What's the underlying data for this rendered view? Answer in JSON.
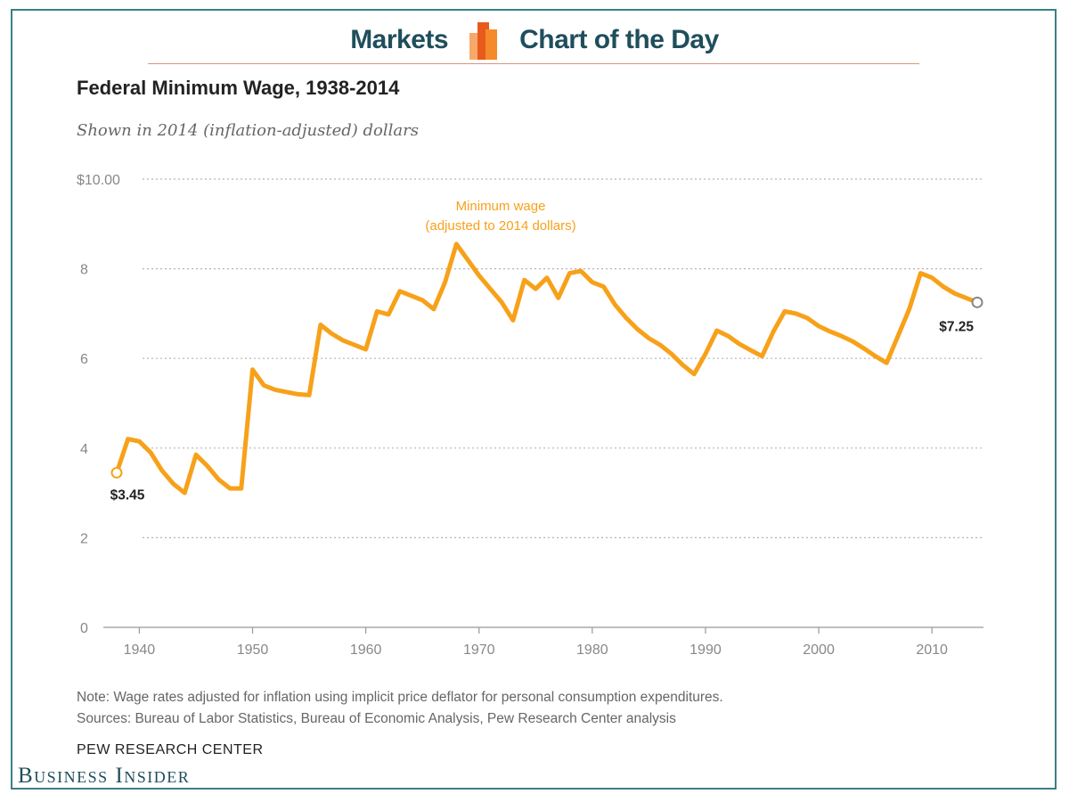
{
  "banner": {
    "left_label": "Markets",
    "right_label": "Chart of the Day"
  },
  "header": {
    "title": "Federal Minimum Wage, 1938-2014",
    "subtitle": "Shown in 2014 (inflation-adjusted) dollars"
  },
  "footer": {
    "note": "Note: Wage rates adjusted for inflation using implicit price deflator for personal consumption expenditures.",
    "sources": "Sources: Bureau of Labor Statistics, Bureau of Economic Analysis, Pew Research Center analysis",
    "credit": "PEW RESEARCH CENTER",
    "brand": "Business Insider"
  },
  "colors": {
    "line": "#f7a11a",
    "brand": "#1f4e5c",
    "frame": "#3c7f86",
    "grid": "#b5b5b5"
  },
  "chart_data": {
    "type": "line",
    "title": "Federal Minimum Wage, 1938-2014",
    "subtitle": "Shown in 2014 (inflation-adjusted) dollars",
    "xlabel": "",
    "ylabel": "",
    "xlim": [
      1938,
      2014
    ],
    "ylim": [
      0,
      10
    ],
    "y_ticks": [
      {
        "value": 0,
        "label": "0"
      },
      {
        "value": 2,
        "label": "2"
      },
      {
        "value": 4,
        "label": "4"
      },
      {
        "value": 6,
        "label": "6"
      },
      {
        "value": 8,
        "label": "8"
      },
      {
        "value": 10,
        "label": "$10.00"
      }
    ],
    "x_ticks": [
      {
        "value": 1940,
        "label": "1940"
      },
      {
        "value": 1950,
        "label": "1950"
      },
      {
        "value": 1960,
        "label": "1960"
      },
      {
        "value": 1970,
        "label": "1970"
      },
      {
        "value": 1980,
        "label": "1980"
      },
      {
        "value": 1990,
        "label": "1990"
      },
      {
        "value": 2000,
        "label": "2000"
      },
      {
        "value": 2010,
        "label": "2010"
      }
    ],
    "series": [
      {
        "name": "Minimum wage (adjusted to 2014 dollars)",
        "label_line1": "Minimum wage",
        "label_line2": "(adjusted to 2014 dollars)",
        "x": [
          1938,
          1939,
          1940,
          1941,
          1942,
          1943,
          1944,
          1945,
          1946,
          1947,
          1948,
          1949,
          1950,
          1951,
          1952,
          1953,
          1954,
          1955,
          1956,
          1957,
          1958,
          1959,
          1960,
          1961,
          1962,
          1963,
          1964,
          1965,
          1966,
          1967,
          1968,
          1969,
          1970,
          1971,
          1972,
          1973,
          1974,
          1975,
          1976,
          1977,
          1978,
          1979,
          1980,
          1981,
          1982,
          1983,
          1984,
          1985,
          1986,
          1987,
          1988,
          1989,
          1990,
          1991,
          1992,
          1993,
          1994,
          1995,
          1996,
          1997,
          1998,
          1999,
          2000,
          2001,
          2002,
          2003,
          2004,
          2005,
          2006,
          2007,
          2008,
          2009,
          2010,
          2011,
          2012,
          2013,
          2014
        ],
        "values": [
          3.45,
          4.2,
          4.15,
          3.9,
          3.5,
          3.2,
          3.0,
          3.85,
          3.6,
          3.3,
          3.1,
          3.1,
          5.75,
          5.4,
          5.3,
          5.25,
          5.2,
          5.18,
          6.75,
          6.55,
          6.4,
          6.3,
          6.2,
          7.05,
          6.98,
          7.5,
          7.4,
          7.3,
          7.1,
          7.7,
          8.55,
          8.2,
          7.85,
          7.55,
          7.25,
          6.85,
          7.75,
          7.55,
          7.8,
          7.35,
          7.9,
          7.95,
          7.7,
          7.6,
          7.2,
          6.9,
          6.65,
          6.45,
          6.3,
          6.1,
          5.85,
          5.65,
          6.1,
          6.62,
          6.5,
          6.32,
          6.18,
          6.05,
          6.6,
          7.05,
          7.0,
          6.9,
          6.72,
          6.6,
          6.5,
          6.38,
          6.22,
          6.05,
          5.9,
          6.5,
          7.1,
          7.9,
          7.8,
          7.6,
          7.45,
          7.35,
          7.25
        ]
      }
    ],
    "annotations": [
      {
        "x": 1938,
        "y": 3.45,
        "label": "$3.45"
      },
      {
        "x": 2014,
        "y": 7.25,
        "label": "$7.25"
      }
    ],
    "grid": true,
    "legend": "none"
  }
}
